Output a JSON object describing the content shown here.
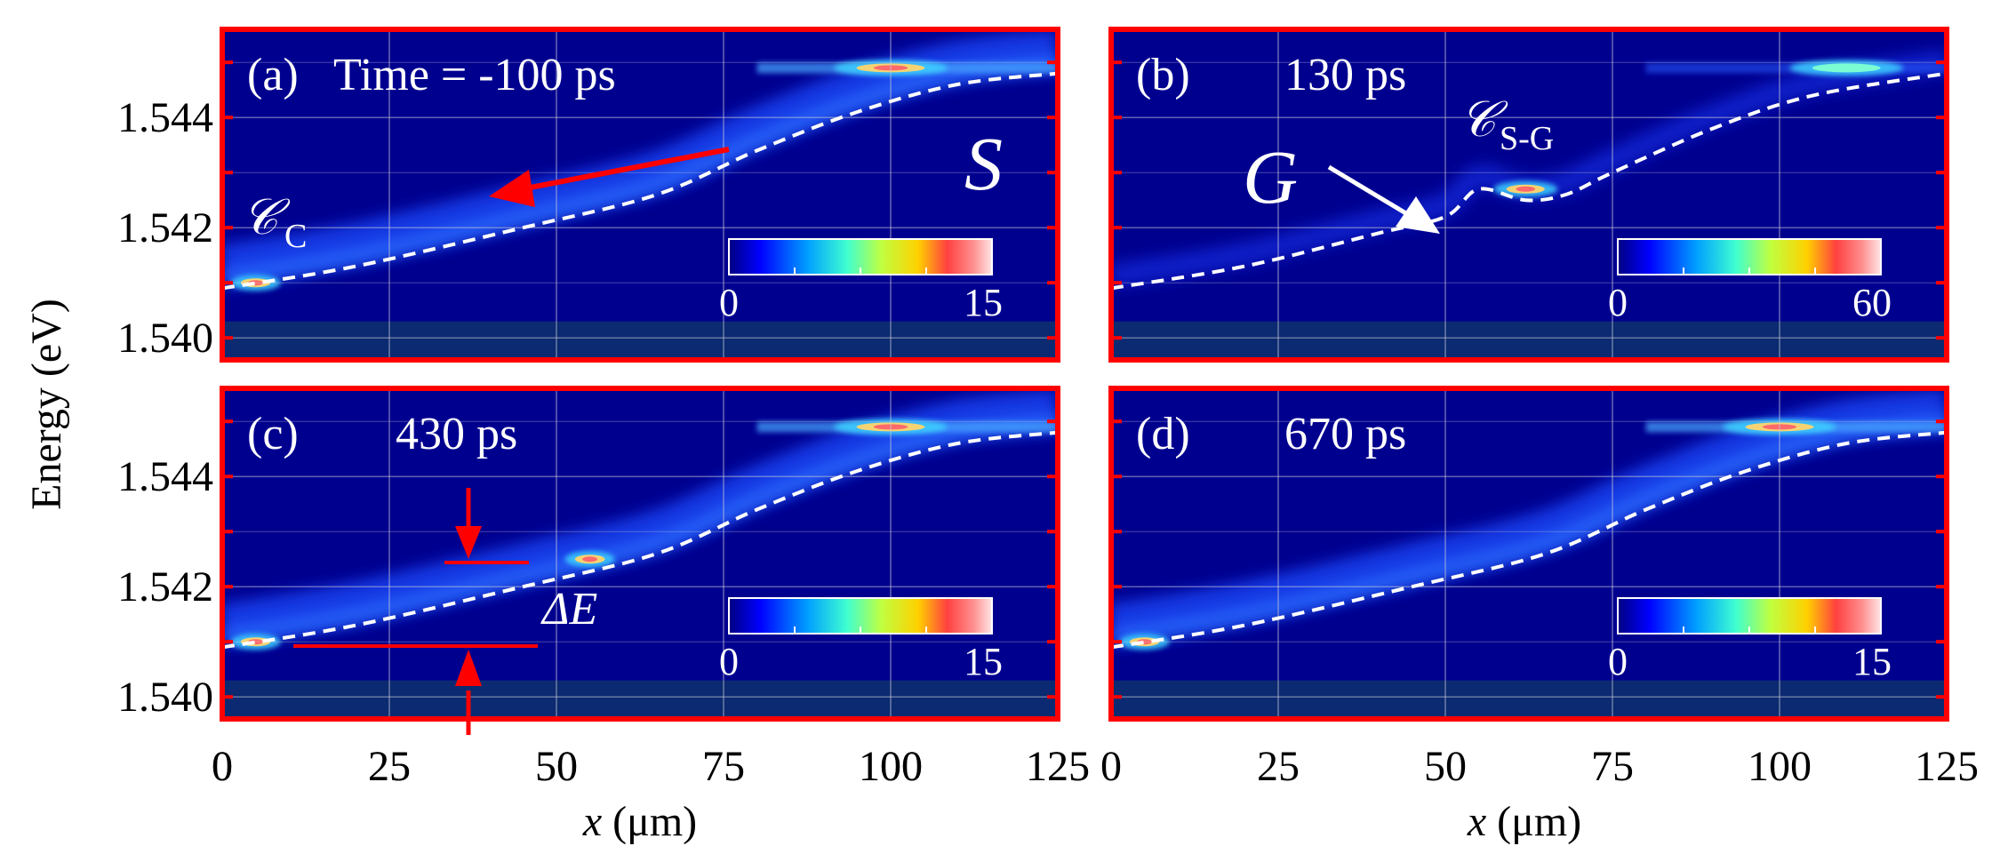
{
  "figure": {
    "ylabel": "Energy (eV)",
    "xlabel_var": "x",
    "xlabel_unit": " (μm)"
  },
  "chart_data": [
    {
      "type": "heatmap",
      "panel": "(a)",
      "title": "Time = -100 ps",
      "xlabel": "x (μm)",
      "ylabel": "Energy (eV)",
      "xlim": [
        0,
        125
      ],
      "ylim": [
        1.5396,
        1.5456
      ],
      "xticks": [
        0,
        25,
        50,
        75,
        100,
        125
      ],
      "xticklabels": [
        "0",
        "25",
        "50",
        "75",
        "100",
        "125"
      ],
      "yticks": [
        1.54,
        1.542,
        1.544
      ],
      "yticklabels": [
        "1.540",
        "1.542",
        "1.544"
      ],
      "grid": true,
      "colorbar": {
        "min": 0,
        "max": 15,
        "labels": [
          "0",
          "15"
        ]
      },
      "annotations": [
        "S",
        "𝒞",
        "C"
      ],
      "potential_curve_energy_eV": [
        [
          0,
          1.5409
        ],
        [
          20,
          1.5413
        ],
        [
          45,
          1.542
        ],
        [
          65,
          1.5426
        ],
        [
          80,
          1.5434
        ],
        [
          95,
          1.5441
        ],
        [
          110,
          1.5446
        ],
        [
          125,
          1.5448
        ]
      ],
      "bright_spots": [
        {
          "x": 5,
          "energy": 1.541,
          "intensity": 15
        },
        {
          "x": 100,
          "energy": 1.5449,
          "intensity": 15
        }
      ]
    },
    {
      "type": "heatmap",
      "panel": "(b)",
      "title": "130 ps",
      "xlabel": "x (μm)",
      "ylabel": "Energy (eV)",
      "xlim": [
        0,
        125
      ],
      "ylim": [
        1.5396,
        1.5456
      ],
      "xticks": [
        0,
        25,
        50,
        75,
        100,
        125
      ],
      "yticks": [
        1.54,
        1.542,
        1.544
      ],
      "grid": true,
      "colorbar": {
        "min": 0,
        "max": 60,
        "labels": [
          "0",
          "60"
        ]
      },
      "annotations": [
        "G",
        "𝒞",
        "S-G"
      ],
      "potential_curve_energy_eV": [
        [
          0,
          1.5409
        ],
        [
          20,
          1.5413
        ],
        [
          40,
          1.5419
        ],
        [
          50,
          1.5422
        ],
        [
          55,
          1.5427
        ],
        [
          62,
          1.5425
        ],
        [
          68,
          1.5426
        ],
        [
          75,
          1.543
        ],
        [
          90,
          1.5438
        ],
        [
          105,
          1.5444
        ],
        [
          125,
          1.5448
        ]
      ],
      "bright_spots": [
        {
          "x": 62,
          "energy": 1.5427,
          "intensity": 60
        },
        {
          "x": 110,
          "energy": 1.5449,
          "intensity": 20
        }
      ]
    },
    {
      "type": "heatmap",
      "panel": "(c)",
      "title": "430 ps",
      "xlabel": "x (μm)",
      "ylabel": "Energy (eV)",
      "xlim": [
        0,
        125
      ],
      "ylim": [
        1.5396,
        1.5456
      ],
      "xticks": [
        0,
        25,
        50,
        75,
        100,
        125
      ],
      "xticklabels": [
        "0",
        "25",
        "50",
        "75",
        "100",
        "125"
      ],
      "yticks": [
        1.54,
        1.542,
        1.544
      ],
      "yticklabels": [
        "1.540",
        "1.542",
        "1.544"
      ],
      "grid": true,
      "colorbar": {
        "min": 0,
        "max": 15,
        "labels": [
          "0",
          "15"
        ]
      },
      "annotations": [
        "ΔE"
      ],
      "potential_curve_energy_eV": [
        [
          0,
          1.5409
        ],
        [
          20,
          1.5413
        ],
        [
          45,
          1.542
        ],
        [
          65,
          1.5426
        ],
        [
          80,
          1.5434
        ],
        [
          95,
          1.5441
        ],
        [
          110,
          1.5446
        ],
        [
          125,
          1.5448
        ]
      ],
      "bright_spots": [
        {
          "x": 5,
          "energy": 1.541,
          "intensity": 15
        },
        {
          "x": 55,
          "energy": 1.5425,
          "intensity": 15
        },
        {
          "x": 100,
          "energy": 1.5449,
          "intensity": 15
        }
      ]
    },
    {
      "type": "heatmap",
      "panel": "(d)",
      "title": "670 ps",
      "xlabel": "x (μm)",
      "ylabel": "Energy (eV)",
      "xlim": [
        0,
        125
      ],
      "ylim": [
        1.5396,
        1.5456
      ],
      "xticks": [
        0,
        25,
        50,
        75,
        100,
        125
      ],
      "xticklabels": [
        "0",
        "25",
        "50",
        "75",
        "100",
        "125"
      ],
      "yticks": [
        1.54,
        1.542,
        1.544
      ],
      "grid": true,
      "colorbar": {
        "min": 0,
        "max": 15,
        "labels": [
          "0",
          "15"
        ]
      },
      "annotations": [],
      "potential_curve_energy_eV": [
        [
          0,
          1.5409
        ],
        [
          20,
          1.5413
        ],
        [
          45,
          1.542
        ],
        [
          65,
          1.5426
        ],
        [
          80,
          1.5434
        ],
        [
          95,
          1.5441
        ],
        [
          110,
          1.5446
        ],
        [
          125,
          1.5448
        ]
      ],
      "bright_spots": [
        {
          "x": 5,
          "energy": 1.541,
          "intensity": 15
        },
        {
          "x": 100,
          "energy": 1.5449,
          "intensity": 15
        }
      ]
    }
  ]
}
